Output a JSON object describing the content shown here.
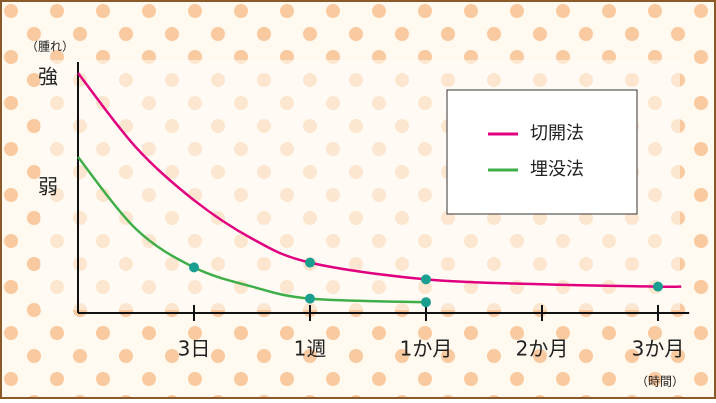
{
  "chart_data": {
    "type": "line",
    "y_label": "（腫れ）",
    "x_label": "（時間）",
    "xlim": [
      0,
      5.2
    ],
    "xticks": [
      {
        "value": 1,
        "label": "3日"
      },
      {
        "value": 2,
        "label": "1週"
      },
      {
        "value": 3,
        "label": "1か月"
      },
      {
        "value": 4,
        "label": "2か月"
      },
      {
        "value": 5,
        "label": "3か月"
      }
    ],
    "ylim": [
      0,
      100
    ],
    "yticks": [
      {
        "value": 98,
        "label": "強"
      },
      {
        "value": 52,
        "label": "弱"
      }
    ],
    "marker_color": "#1a9e8f",
    "legend": "upper right",
    "series": [
      {
        "name": "切開法",
        "color": "#e0007f",
        "x": [
          0,
          0.5,
          1,
          1.5,
          2,
          3,
          4,
          5,
          5.2
        ],
        "values": [
          100,
          69,
          47,
          31,
          21,
          14,
          12,
          11,
          11
        ],
        "markers": [
          4,
          5,
          7
        ]
      },
      {
        "name": "埋没法",
        "color": "#3fae49",
        "x": [
          0,
          0.5,
          1,
          1.5,
          2,
          3
        ],
        "values": [
          65,
          35,
          19,
          11,
          6,
          4.5
        ],
        "markers": [
          2,
          4,
          5
        ]
      }
    ]
  }
}
